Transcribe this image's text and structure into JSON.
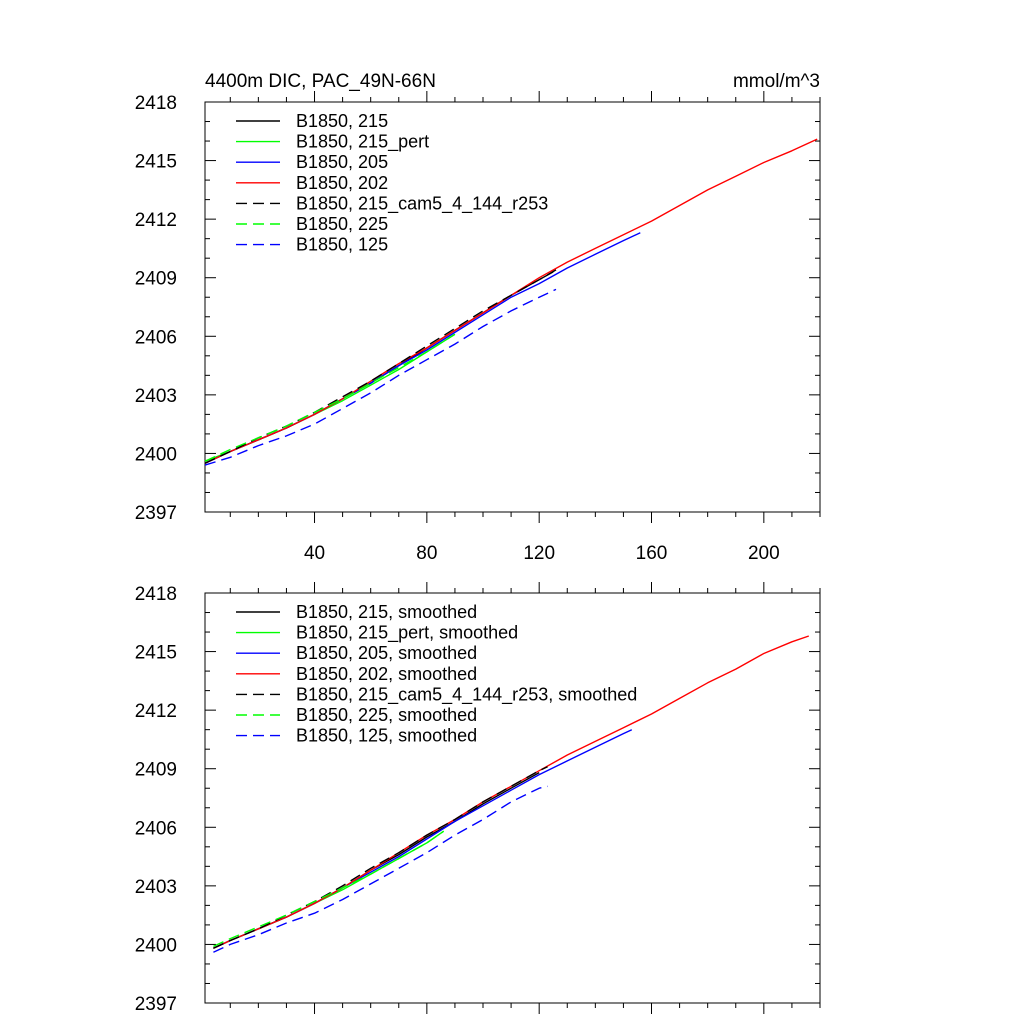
{
  "chart_data": [
    {
      "type": "line",
      "title_left": "4400m DIC, PAC_49N-66N",
      "title_right": "mmol/m^3",
      "xlabel": "",
      "ylabel": "",
      "xlim": [
        1,
        220
      ],
      "ylim": [
        2397,
        2418
      ],
      "x_ticks": [
        40,
        80,
        120,
        160,
        200
      ],
      "x_tick_labels": [
        "40",
        "80",
        "120",
        "160",
        "200"
      ],
      "y_ticks": [
        2397,
        2400,
        2403,
        2406,
        2409,
        2412,
        2415,
        2418
      ],
      "y_tick_labels": [
        "2397",
        "2400",
        "2403",
        "2406",
        "2409",
        "2412",
        "2415",
        "2418"
      ],
      "legend_position": "top-left",
      "series": [
        {
          "name": "B1850, 215",
          "color": "#000000",
          "dash": "solid",
          "x": [
            1,
            10,
            20,
            30,
            40,
            50,
            60,
            70,
            80,
            90,
            100,
            110,
            120,
            125
          ],
          "y": [
            2399.5,
            2400.1,
            2400.7,
            2401.3,
            2402.0,
            2402.8,
            2403.6,
            2404.5,
            2405.4,
            2406.3,
            2407.2,
            2408.1,
            2408.9,
            2409.3
          ]
        },
        {
          "name": "B1850, 215_pert",
          "color": "#00ff00",
          "dash": "solid",
          "x": [
            1,
            10,
            20,
            30,
            40,
            50,
            60,
            70,
            80,
            90
          ],
          "y": [
            2399.6,
            2400.1,
            2400.7,
            2401.3,
            2402.0,
            2402.7,
            2403.5,
            2404.3,
            2405.2,
            2406.1
          ]
        },
        {
          "name": "B1850, 205",
          "color": "#0000ff",
          "dash": "solid",
          "x": [
            1,
            10,
            20,
            30,
            40,
            50,
            60,
            70,
            80,
            90,
            100,
            110,
            120,
            130,
            140,
            150,
            156
          ],
          "y": [
            2399.5,
            2400.1,
            2400.7,
            2401.3,
            2402.0,
            2402.8,
            2403.6,
            2404.5,
            2405.3,
            2406.2,
            2407.1,
            2408.0,
            2408.7,
            2409.5,
            2410.2,
            2410.9,
            2411.3
          ]
        },
        {
          "name": "B1850, 202",
          "color": "#ff0000",
          "dash": "solid",
          "x": [
            1,
            10,
            20,
            30,
            40,
            50,
            60,
            70,
            80,
            90,
            100,
            110,
            120,
            130,
            140,
            150,
            160,
            170,
            180,
            190,
            200,
            210,
            219
          ],
          "y": [
            2399.5,
            2400.1,
            2400.7,
            2401.3,
            2402.0,
            2402.8,
            2403.7,
            2404.6,
            2405.4,
            2406.3,
            2407.2,
            2408.1,
            2409.0,
            2409.8,
            2410.5,
            2411.2,
            2411.9,
            2412.7,
            2413.5,
            2414.2,
            2414.9,
            2415.5,
            2416.1
          ]
        },
        {
          "name": "B1850, 215_cam5_4_144_r253",
          "color": "#000000",
          "dash": "dashed",
          "x": [
            1,
            10,
            20,
            30,
            40,
            50,
            60,
            70,
            80,
            90,
            100,
            110,
            120,
            126
          ],
          "y": [
            2399.5,
            2400.1,
            2400.8,
            2401.4,
            2402.1,
            2402.9,
            2403.7,
            2404.6,
            2405.5,
            2406.4,
            2407.3,
            2408.1,
            2408.9,
            2409.4
          ]
        },
        {
          "name": "B1850, 225",
          "color": "#00ff00",
          "dash": "dashed",
          "x": [
            1,
            10,
            20,
            30,
            40,
            50,
            60,
            70,
            80,
            90
          ],
          "y": [
            2399.6,
            2400.2,
            2400.8,
            2401.4,
            2402.1,
            2402.8,
            2403.6,
            2404.4,
            2405.2,
            2406.1
          ]
        },
        {
          "name": "B1850, 125",
          "color": "#0000ff",
          "dash": "dashed",
          "x": [
            1,
            10,
            20,
            30,
            40,
            50,
            60,
            70,
            80,
            90,
            100,
            110,
            120,
            126
          ],
          "y": [
            2399.4,
            2399.8,
            2400.4,
            2400.9,
            2401.5,
            2402.3,
            2403.1,
            2404.0,
            2404.8,
            2405.6,
            2406.5,
            2407.3,
            2408.0,
            2408.4
          ]
        }
      ]
    },
    {
      "type": "line",
      "title_left": "",
      "title_right": "",
      "xlabel": "",
      "ylabel": "",
      "xlim": [
        1,
        220
      ],
      "ylim": [
        2397,
        2418
      ],
      "x_ticks": [
        40,
        80,
        120,
        160,
        200
      ],
      "x_tick_labels": [],
      "y_ticks": [
        2397,
        2400,
        2403,
        2406,
        2409,
        2412,
        2415,
        2418
      ],
      "y_tick_labels": [
        "2397",
        "2400",
        "2403",
        "2406",
        "2409",
        "2412",
        "2415",
        "2418"
      ],
      "legend_position": "top-left",
      "series": [
        {
          "name": "B1850, 215, smoothed",
          "color": "#000000",
          "dash": "solid",
          "x": [
            4,
            10,
            20,
            30,
            40,
            50,
            60,
            70,
            80,
            90,
            100,
            110,
            120
          ],
          "y": [
            2399.8,
            2400.2,
            2400.8,
            2401.4,
            2402.1,
            2402.9,
            2403.8,
            2404.6,
            2405.5,
            2406.3,
            2407.2,
            2408.0,
            2408.8
          ]
        },
        {
          "name": "B1850, 215_pert, smoothed",
          "color": "#00ff00",
          "dash": "solid",
          "x": [
            4,
            10,
            20,
            30,
            40,
            50,
            60,
            70,
            80,
            86
          ],
          "y": [
            2399.8,
            2400.2,
            2400.8,
            2401.4,
            2402.1,
            2402.8,
            2403.6,
            2404.4,
            2405.2,
            2405.8
          ]
        },
        {
          "name": "B1850, 205, smoothed",
          "color": "#0000ff",
          "dash": "solid",
          "x": [
            4,
            10,
            20,
            30,
            40,
            50,
            60,
            70,
            80,
            90,
            100,
            110,
            120,
            130,
            140,
            150,
            153
          ],
          "y": [
            2399.8,
            2400.2,
            2400.8,
            2401.4,
            2402.1,
            2402.9,
            2403.7,
            2404.5,
            2405.4,
            2406.3,
            2407.1,
            2407.9,
            2408.7,
            2409.4,
            2410.1,
            2410.8,
            2411.0
          ]
        },
        {
          "name": "B1850, 202, smoothed",
          "color": "#ff0000",
          "dash": "solid",
          "x": [
            4,
            10,
            20,
            30,
            40,
            50,
            60,
            70,
            80,
            90,
            100,
            110,
            120,
            130,
            140,
            150,
            160,
            170,
            180,
            190,
            200,
            210,
            216
          ],
          "y": [
            2399.8,
            2400.2,
            2400.8,
            2401.4,
            2402.1,
            2402.9,
            2403.8,
            2404.7,
            2405.6,
            2406.4,
            2407.3,
            2408.1,
            2408.9,
            2409.7,
            2410.4,
            2411.1,
            2411.8,
            2412.6,
            2413.4,
            2414.1,
            2414.9,
            2415.5,
            2415.8
          ]
        },
        {
          "name": "B1850, 215_cam5_4_144_r253, smoothed",
          "color": "#000000",
          "dash": "dashed",
          "x": [
            4,
            10,
            20,
            30,
            40,
            50,
            60,
            70,
            80,
            90,
            100,
            110,
            120,
            123
          ],
          "y": [
            2399.8,
            2400.2,
            2400.8,
            2401.5,
            2402.2,
            2403.0,
            2403.9,
            2404.7,
            2405.6,
            2406.4,
            2407.3,
            2408.1,
            2408.9,
            2409.1
          ]
        },
        {
          "name": "B1850, 225, smoothed",
          "color": "#00ff00",
          "dash": "dashed",
          "x": [
            4,
            10,
            20,
            30,
            40,
            50,
            60,
            70,
            80,
            86
          ],
          "y": [
            2399.9,
            2400.3,
            2400.9,
            2401.5,
            2402.2,
            2402.9,
            2403.6,
            2404.4,
            2405.2,
            2405.8
          ]
        },
        {
          "name": "B1850, 125, smoothed",
          "color": "#0000ff",
          "dash": "dashed",
          "x": [
            4,
            10,
            20,
            30,
            40,
            50,
            60,
            70,
            80,
            90,
            100,
            110,
            120,
            123
          ],
          "y": [
            2399.6,
            2400.0,
            2400.5,
            2401.1,
            2401.6,
            2402.3,
            2403.1,
            2403.9,
            2404.7,
            2405.6,
            2406.4,
            2407.3,
            2408.0,
            2408.1
          ]
        }
      ]
    }
  ]
}
